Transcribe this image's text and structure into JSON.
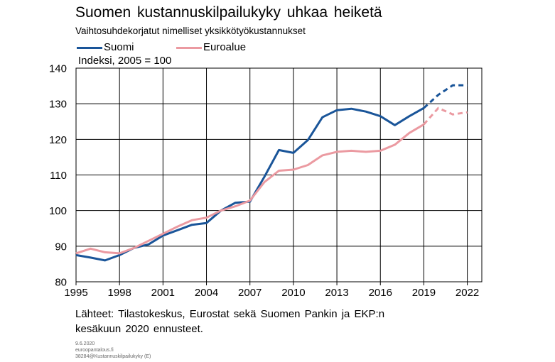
{
  "title": "Suomen kustannuskilpailukyky uhkaa heiketä",
  "subtitle": "Vaihtosuhdekorjatut nimelliset yksikkötyökustannukset",
  "unit_label": "Indeksi, 2005 = 100",
  "source_line1": "Lähteet: Tilastokeskus, Eurostat sekä Suomen Pankin ja EKP:n",
  "source_line2": "kesäkuun 2020 ennusteet.",
  "meta": {
    "date": "9.6.2020",
    "site": "euroopantalous.fi",
    "id": "38284@Kustannuskilpailukyky (E)"
  },
  "chart_data": {
    "type": "line",
    "title": "Suomen kustannuskilpailukyky uhkaa heiketä",
    "subtitle": "Vaihtosuhdekorjatut nimelliset yksikkötyökustannukset",
    "ylabel": "Indeksi, 2005 = 100",
    "xlim": [
      1995,
      2023
    ],
    "ylim": [
      80,
      140
    ],
    "xticks": [
      1995,
      1998,
      2001,
      2004,
      2007,
      2010,
      2013,
      2016,
      2019,
      2022
    ],
    "yticks": [
      80,
      90,
      100,
      110,
      120,
      130,
      140
    ],
    "grid": true,
    "legend_position": "top-left",
    "forecast_from": 2019,
    "series": [
      {
        "name": "Suomi",
        "color": "#1a5599",
        "x": [
          1995,
          1996,
          1997,
          1998,
          1999,
          2000,
          2001,
          2002,
          2003,
          2004,
          2005,
          2006,
          2007,
          2008,
          2009,
          2010,
          2011,
          2012,
          2013,
          2014,
          2015,
          2016,
          2017,
          2018,
          2019,
          2020,
          2021,
          2022
        ],
        "values": [
          87.5,
          86.8,
          86.0,
          87.5,
          89.5,
          90.5,
          93.0,
          94.5,
          96.0,
          96.5,
          100.0,
          102.2,
          102.5,
          109.5,
          117.0,
          116.2,
          119.8,
          126.2,
          128.2,
          128.6,
          127.8,
          126.5,
          124.0,
          126.5,
          128.8,
          132.5,
          135.2,
          135.2
        ]
      },
      {
        "name": "Euroalue",
        "color": "#eb9aa1",
        "x": [
          1995,
          1996,
          1997,
          1998,
          1999,
          2000,
          2001,
          2002,
          2003,
          2004,
          2005,
          2006,
          2007,
          2008,
          2009,
          2010,
          2011,
          2012,
          2013,
          2014,
          2015,
          2016,
          2017,
          2018,
          2019,
          2020,
          2021,
          2022
        ],
        "values": [
          88.0,
          89.3,
          88.3,
          88.0,
          89.5,
          91.5,
          93.5,
          95.5,
          97.3,
          98.0,
          100.0,
          101.2,
          102.8,
          108.0,
          111.2,
          111.5,
          112.8,
          115.5,
          116.5,
          116.8,
          116.5,
          116.8,
          118.5,
          121.8,
          124.2,
          128.8,
          127.0,
          127.6
        ]
      }
    ]
  }
}
